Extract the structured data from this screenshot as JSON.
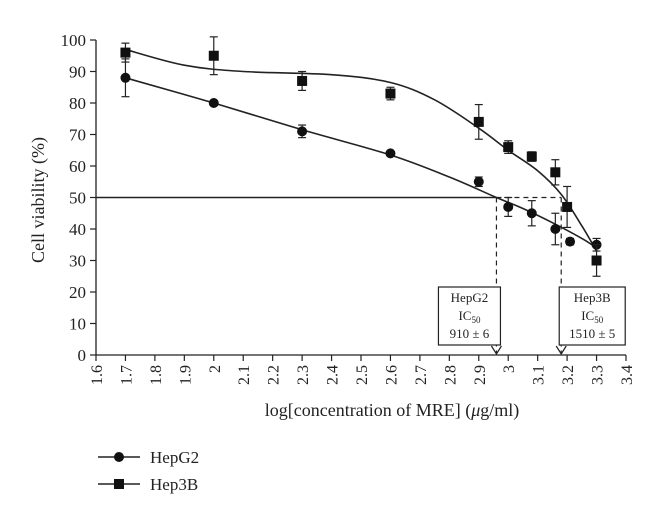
{
  "chart_data": {
    "type": "scatter",
    "xlabel_pre": "log[concentration of MRE] (",
    "xlabel_mu": "μ",
    "xlabel_post": "g/ml)",
    "ylabel": "Cell viability (%)",
    "xlim": [
      1.6,
      3.4
    ],
    "ylim": [
      0,
      100
    ],
    "x_ticks": [
      "1.6",
      "1.7",
      "1.8",
      "1.9",
      "2",
      "2.1",
      "2.2",
      "2.3",
      "2.4",
      "2.5",
      "2.6",
      "2.7",
      "2.8",
      "2.9",
      "3",
      "3.1",
      "3.2",
      "3.3",
      "3.4"
    ],
    "y_ticks": [
      "0",
      "10",
      "20",
      "30",
      "40",
      "50",
      "60",
      "70",
      "80",
      "90",
      "100"
    ],
    "threshold_y": 50,
    "series": [
      {
        "name": "HepG2",
        "marker": "circle",
        "points": [
          {
            "x": 1.7,
            "y": 88,
            "err": 6
          },
          {
            "x": 2.0,
            "y": 80,
            "err": 0
          },
          {
            "x": 2.3,
            "y": 71,
            "err": 2
          },
          {
            "x": 2.6,
            "y": 64,
            "err": 0
          },
          {
            "x": 2.9,
            "y": 55,
            "err": 1.5
          },
          {
            "x": 3.0,
            "y": 47,
            "err": 3
          },
          {
            "x": 3.08,
            "y": 45,
            "err": 4
          },
          {
            "x": 3.16,
            "y": 40,
            "err": 5
          },
          {
            "x": 3.21,
            "y": 36,
            "err": 1
          },
          {
            "x": 3.3,
            "y": 35,
            "err": 2
          }
        ],
        "curve": [
          [
            1.7,
            88
          ],
          [
            2.0,
            80
          ],
          [
            2.3,
            71.5
          ],
          [
            2.6,
            63.5
          ],
          [
            2.8,
            56.5
          ],
          [
            2.96,
            50
          ],
          [
            3.05,
            46.5
          ],
          [
            3.15,
            42
          ],
          [
            3.25,
            37
          ],
          [
            3.3,
            34
          ]
        ]
      },
      {
        "name": "Hep3B",
        "marker": "square",
        "points": [
          {
            "x": 1.7,
            "y": 96,
            "err": 3
          },
          {
            "x": 2.0,
            "y": 95,
            "err": 6
          },
          {
            "x": 2.3,
            "y": 87,
            "err": 3
          },
          {
            "x": 2.6,
            "y": 83,
            "err": 2
          },
          {
            "x": 2.9,
            "y": 74,
            "err": 5.5
          },
          {
            "x": 3.0,
            "y": 66,
            "err": 2
          },
          {
            "x": 3.08,
            "y": 63,
            "err": 1.5
          },
          {
            "x": 3.16,
            "y": 58,
            "err": 4
          },
          {
            "x": 3.2,
            "y": 47,
            "err": 6.5
          },
          {
            "x": 3.3,
            "y": 30,
            "err": 5
          }
        ],
        "curve": [
          [
            1.7,
            97
          ],
          [
            1.9,
            92
          ],
          [
            2.1,
            90
          ],
          [
            2.4,
            89
          ],
          [
            2.6,
            86.5
          ],
          [
            2.75,
            81
          ],
          [
            2.9,
            72
          ],
          [
            3.0,
            65
          ],
          [
            3.1,
            58.5
          ],
          [
            3.18,
            51
          ],
          [
            3.25,
            41
          ],
          [
            3.3,
            33
          ]
        ]
      }
    ],
    "annotations": [
      {
        "label": "HepG2",
        "ic_main": "IC",
        "ic_sub": "50",
        "value": "910 ± 6",
        "x": 2.96
      },
      {
        "label": "Hep3B",
        "ic_main": "IC",
        "ic_sub": "50",
        "value": "1510 ± 5",
        "x": 3.18
      }
    ],
    "legend_position": "bottom-left",
    "colors": {
      "line": "#222222",
      "marker": "#111111",
      "grid": "none"
    }
  }
}
